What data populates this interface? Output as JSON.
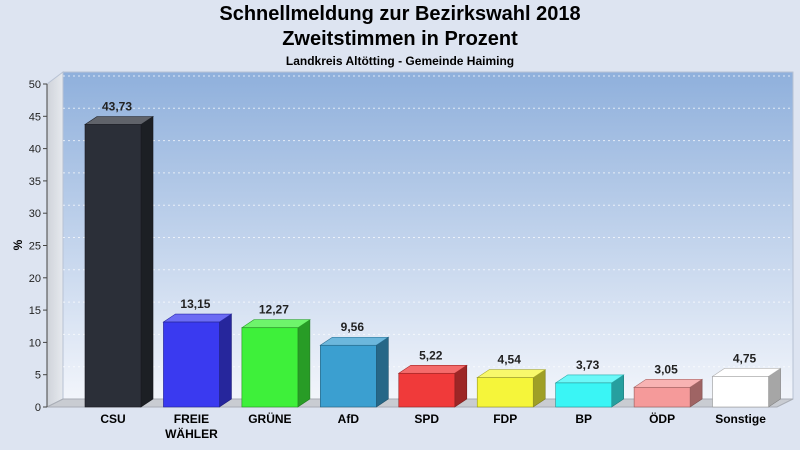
{
  "header": {
    "title": "Schnellmeldung zur Bezirkswahl 2018",
    "title_line2": "Zweitstimmen in Prozent",
    "subtitle": "Landkreis Altötting - Gemeinde Haiming"
  },
  "chart_data": {
    "type": "bar",
    "title": "Schnellmeldung zur Bezirkswahl 2018",
    "subtitle": "Zweitstimmen in Prozent",
    "ylabel": "%",
    "xlabel": "",
    "ylim": [
      0,
      50
    ],
    "yticks": [
      0,
      5,
      10,
      15,
      20,
      25,
      30,
      35,
      40,
      45,
      50
    ],
    "grid": true,
    "categories": [
      [
        "CSU"
      ],
      [
        "FREIE",
        "WÄHLER"
      ],
      [
        "GRÜNE"
      ],
      [
        "AfD"
      ],
      [
        "SPD"
      ],
      [
        "FDP"
      ],
      [
        "BP"
      ],
      [
        "ÖDP"
      ],
      [
        "Sonstige"
      ]
    ],
    "values": [
      43.73,
      13.15,
      12.27,
      9.56,
      5.22,
      4.54,
      3.73,
      3.05,
      4.75
    ],
    "value_labels": [
      "43,73",
      "13,15",
      "12,27",
      "9,56",
      "5,22",
      "4,54",
      "3,73",
      "3,05",
      "4,75"
    ],
    "colors": [
      "#2b2f38",
      "#3a3af0",
      "#3ef03a",
      "#3b9fd0",
      "#f03a3a",
      "#f5f53a",
      "#3af5f5",
      "#f59a9a",
      "#ffffff"
    ]
  }
}
